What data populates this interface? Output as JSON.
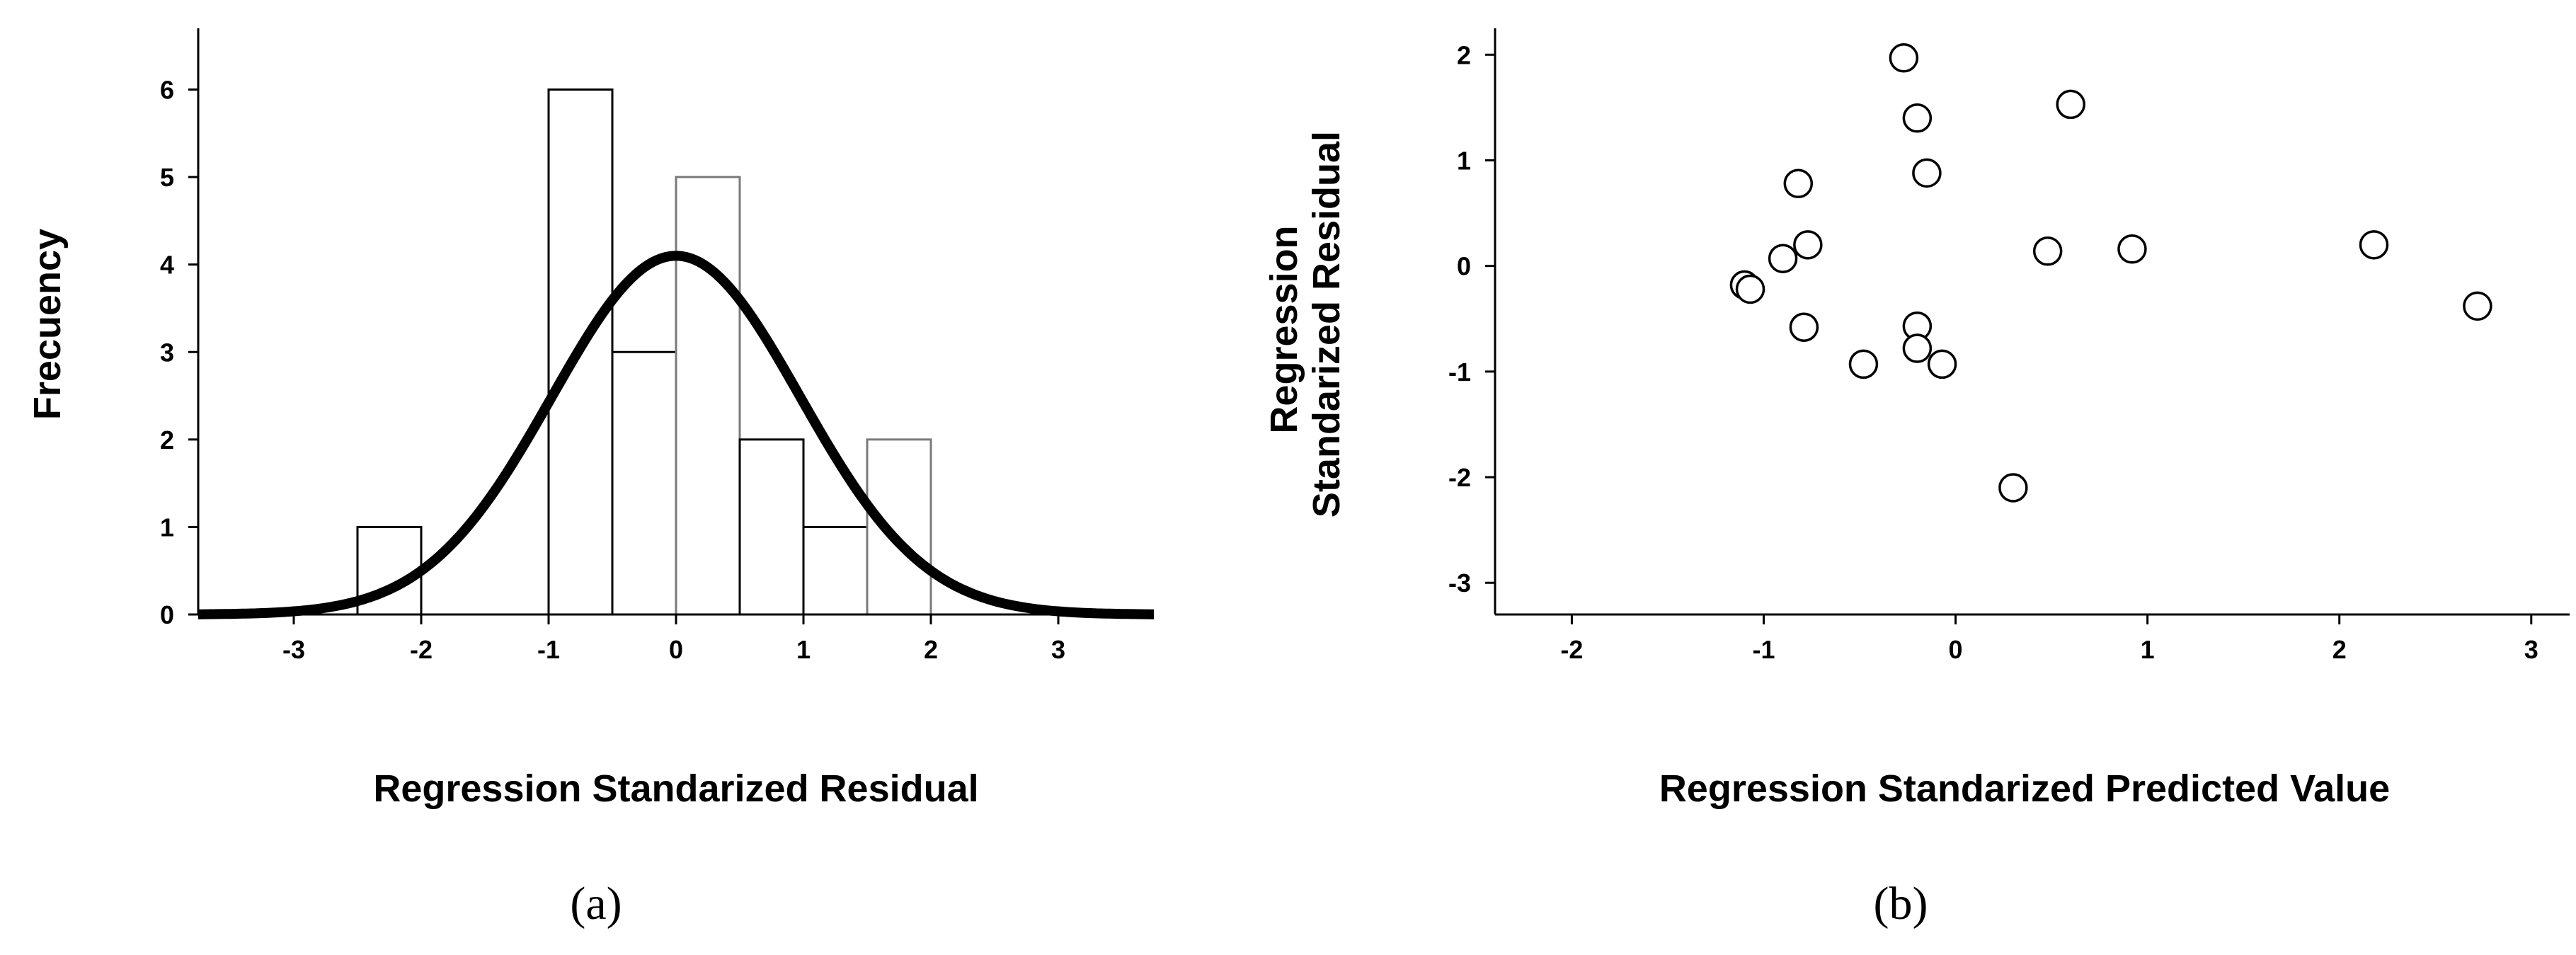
{
  "chart_data": [
    {
      "type": "bar",
      "panel_label": "(a)",
      "title": "",
      "xlabel": "Regression Standarized Residual",
      "ylabel": "Frecuency",
      "xlim": [
        -3.75,
        3.75
      ],
      "ylim": [
        0,
        6.7
      ],
      "x_ticks": [
        -3,
        -2,
        -1,
        0,
        1,
        2,
        3
      ],
      "y_ticks": [
        0,
        1,
        2,
        3,
        4,
        5,
        6
      ],
      "bin_width": 0.5,
      "bars": [
        {
          "left": -2.5,
          "value": 1
        },
        {
          "left": -1.0,
          "value": 6
        },
        {
          "left": -0.5,
          "value": 3
        },
        {
          "left": 0.0,
          "value": 5
        },
        {
          "left": 0.5,
          "value": 2
        },
        {
          "left": 1.0,
          "value": 1
        },
        {
          "left": 1.5,
          "value": 2
        }
      ],
      "overlay": {
        "type": "normal_curve",
        "mean": 0,
        "sd": 0.975,
        "peak": 4.1
      }
    },
    {
      "type": "scatter",
      "panel_label": "(b)",
      "title": "",
      "xlabel": "Regression Standarized Predicted Value",
      "ylabel": "Regression Standarized Residual",
      "xlim": [
        -2.4,
        3.2
      ],
      "ylim": [
        -3.3,
        2.25
      ],
      "x_ticks": [
        -2,
        -1,
        0,
        1,
        2,
        3
      ],
      "y_ticks": [
        -3,
        -2,
        -1,
        0,
        1,
        2
      ],
      "points": [
        {
          "x": -1.1,
          "y": -0.18
        },
        {
          "x": -1.07,
          "y": -0.22
        },
        {
          "x": -0.9,
          "y": 0.07
        },
        {
          "x": -0.82,
          "y": 0.78
        },
        {
          "x": -0.77,
          "y": 0.2
        },
        {
          "x": -0.79,
          "y": -0.58
        },
        {
          "x": -0.48,
          "y": -0.93
        },
        {
          "x": -0.27,
          "y": 1.97
        },
        {
          "x": -0.2,
          "y": 1.4
        },
        {
          "x": -0.2,
          "y": -0.57
        },
        {
          "x": -0.2,
          "y": -0.78
        },
        {
          "x": -0.15,
          "y": 0.88
        },
        {
          "x": -0.07,
          "y": -0.93
        },
        {
          "x": 0.3,
          "y": -2.1
        },
        {
          "x": 0.48,
          "y": 0.14
        },
        {
          "x": 0.6,
          "y": 1.53
        },
        {
          "x": 0.92,
          "y": 0.16
        },
        {
          "x": 2.18,
          "y": 0.2
        },
        {
          "x": 2.72,
          "y": -0.38
        }
      ]
    }
  ]
}
